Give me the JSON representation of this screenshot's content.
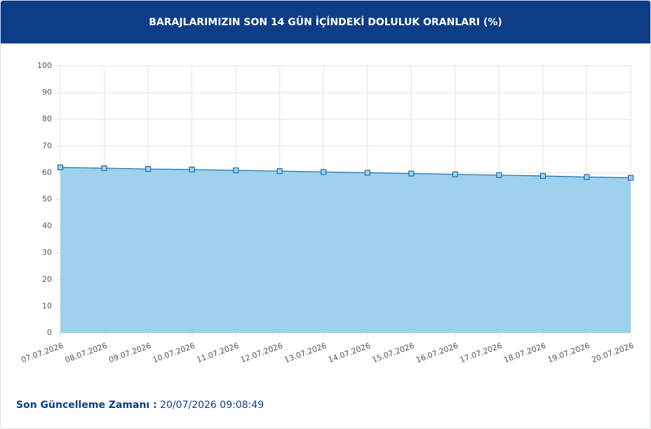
{
  "chart_data": {
    "type": "area",
    "title": "BARAJLARIMIZIN SON 14 GÜN İÇİNDEKİ DOLULUK ORANLARI (%)",
    "categories": [
      "07.07.2026",
      "08.07.2026",
      "09.07.2026",
      "10.07.2026",
      "11.07.2026",
      "12.07.2026",
      "13.07.2026",
      "14.07.2026",
      "15.07.2026",
      "16.07.2026",
      "17.07.2026",
      "18.07.2026",
      "19.07.2026",
      "20.07.2026"
    ],
    "values": [
      62.0,
      61.7,
      61.4,
      61.2,
      60.9,
      60.6,
      60.3,
      60.0,
      59.7,
      59.4,
      59.1,
      58.8,
      58.4,
      58.1
    ],
    "color": "#1f6ea6",
    "fill_color": "#9dd1ee",
    "ylim": [
      0,
      100
    ],
    "yticks": [
      0,
      10,
      20,
      30,
      40,
      50,
      60,
      70,
      80,
      90,
      100
    ],
    "grid": true
  },
  "footer": {
    "label": "Son Güncelleme Zamanı :",
    "value": "20/07/2026 09:08:49"
  }
}
